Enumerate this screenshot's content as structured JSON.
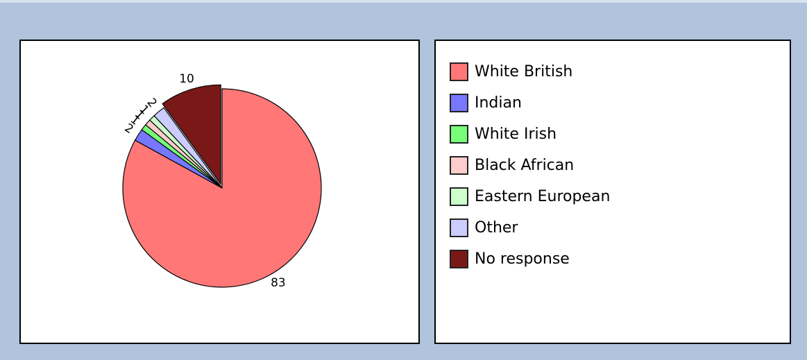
{
  "chart_data": {
    "type": "pie",
    "title": "",
    "start_angle_deg": 90,
    "direction": "clockwise",
    "exploded": [
      "No response"
    ],
    "slices": [
      {
        "label": "White British",
        "value": 83,
        "color": "#ff7777"
      },
      {
        "label": "Indian",
        "value": 2,
        "color": "#7777ff"
      },
      {
        "label": "White Irish",
        "value": 1,
        "color": "#77ff77"
      },
      {
        "label": "Black African",
        "value": 1,
        "color": "#ffcccc"
      },
      {
        "label": "Eastern European",
        "value": 1,
        "color": "#ccffcc"
      },
      {
        "label": "Other",
        "value": 2,
        "color": "#ccccff"
      },
      {
        "label": "No response",
        "value": 10,
        "color": "#7a1818"
      }
    ],
    "legend": {
      "position": "right"
    },
    "slice_border_color": "#000000"
  }
}
